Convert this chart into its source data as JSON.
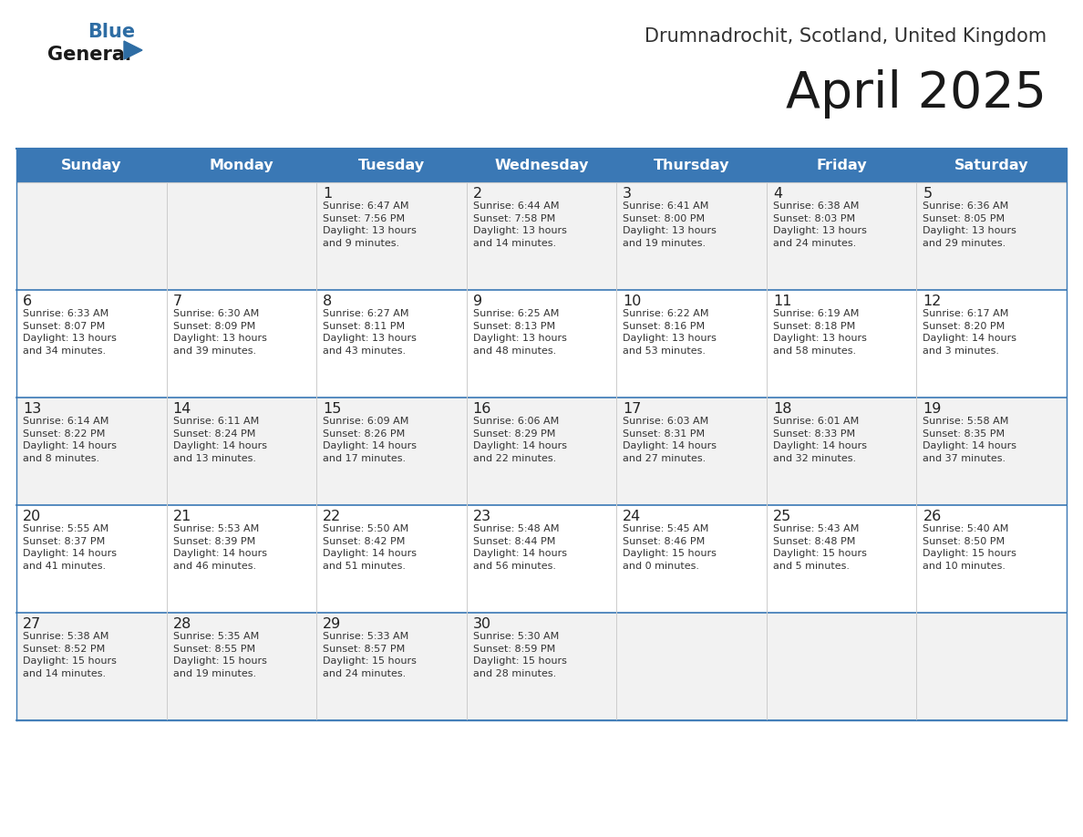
{
  "title": "April 2025",
  "subtitle": "Drumnadrochit, Scotland, United Kingdom",
  "header_bg": "#3A78B5",
  "header_text_color": "#FFFFFF",
  "row_bg_odd": "#F2F2F2",
  "row_bg_even": "#FFFFFF",
  "day_names": [
    "Sunday",
    "Monday",
    "Tuesday",
    "Wednesday",
    "Thursday",
    "Friday",
    "Saturday"
  ],
  "text_color_dark": "#333333",
  "line_color": "#3A78B5",
  "calendar_data": [
    [
      {
        "day": "",
        "info": ""
      },
      {
        "day": "",
        "info": ""
      },
      {
        "day": "1",
        "info": "Sunrise: 6:47 AM\nSunset: 7:56 PM\nDaylight: 13 hours\nand 9 minutes."
      },
      {
        "day": "2",
        "info": "Sunrise: 6:44 AM\nSunset: 7:58 PM\nDaylight: 13 hours\nand 14 minutes."
      },
      {
        "day": "3",
        "info": "Sunrise: 6:41 AM\nSunset: 8:00 PM\nDaylight: 13 hours\nand 19 minutes."
      },
      {
        "day": "4",
        "info": "Sunrise: 6:38 AM\nSunset: 8:03 PM\nDaylight: 13 hours\nand 24 minutes."
      },
      {
        "day": "5",
        "info": "Sunrise: 6:36 AM\nSunset: 8:05 PM\nDaylight: 13 hours\nand 29 minutes."
      }
    ],
    [
      {
        "day": "6",
        "info": "Sunrise: 6:33 AM\nSunset: 8:07 PM\nDaylight: 13 hours\nand 34 minutes."
      },
      {
        "day": "7",
        "info": "Sunrise: 6:30 AM\nSunset: 8:09 PM\nDaylight: 13 hours\nand 39 minutes."
      },
      {
        "day": "8",
        "info": "Sunrise: 6:27 AM\nSunset: 8:11 PM\nDaylight: 13 hours\nand 43 minutes."
      },
      {
        "day": "9",
        "info": "Sunrise: 6:25 AM\nSunset: 8:13 PM\nDaylight: 13 hours\nand 48 minutes."
      },
      {
        "day": "10",
        "info": "Sunrise: 6:22 AM\nSunset: 8:16 PM\nDaylight: 13 hours\nand 53 minutes."
      },
      {
        "day": "11",
        "info": "Sunrise: 6:19 AM\nSunset: 8:18 PM\nDaylight: 13 hours\nand 58 minutes."
      },
      {
        "day": "12",
        "info": "Sunrise: 6:17 AM\nSunset: 8:20 PM\nDaylight: 14 hours\nand 3 minutes."
      }
    ],
    [
      {
        "day": "13",
        "info": "Sunrise: 6:14 AM\nSunset: 8:22 PM\nDaylight: 14 hours\nand 8 minutes."
      },
      {
        "day": "14",
        "info": "Sunrise: 6:11 AM\nSunset: 8:24 PM\nDaylight: 14 hours\nand 13 minutes."
      },
      {
        "day": "15",
        "info": "Sunrise: 6:09 AM\nSunset: 8:26 PM\nDaylight: 14 hours\nand 17 minutes."
      },
      {
        "day": "16",
        "info": "Sunrise: 6:06 AM\nSunset: 8:29 PM\nDaylight: 14 hours\nand 22 minutes."
      },
      {
        "day": "17",
        "info": "Sunrise: 6:03 AM\nSunset: 8:31 PM\nDaylight: 14 hours\nand 27 minutes."
      },
      {
        "day": "18",
        "info": "Sunrise: 6:01 AM\nSunset: 8:33 PM\nDaylight: 14 hours\nand 32 minutes."
      },
      {
        "day": "19",
        "info": "Sunrise: 5:58 AM\nSunset: 8:35 PM\nDaylight: 14 hours\nand 37 minutes."
      }
    ],
    [
      {
        "day": "20",
        "info": "Sunrise: 5:55 AM\nSunset: 8:37 PM\nDaylight: 14 hours\nand 41 minutes."
      },
      {
        "day": "21",
        "info": "Sunrise: 5:53 AM\nSunset: 8:39 PM\nDaylight: 14 hours\nand 46 minutes."
      },
      {
        "day": "22",
        "info": "Sunrise: 5:50 AM\nSunset: 8:42 PM\nDaylight: 14 hours\nand 51 minutes."
      },
      {
        "day": "23",
        "info": "Sunrise: 5:48 AM\nSunset: 8:44 PM\nDaylight: 14 hours\nand 56 minutes."
      },
      {
        "day": "24",
        "info": "Sunrise: 5:45 AM\nSunset: 8:46 PM\nDaylight: 15 hours\nand 0 minutes."
      },
      {
        "day": "25",
        "info": "Sunrise: 5:43 AM\nSunset: 8:48 PM\nDaylight: 15 hours\nand 5 minutes."
      },
      {
        "day": "26",
        "info": "Sunrise: 5:40 AM\nSunset: 8:50 PM\nDaylight: 15 hours\nand 10 minutes."
      }
    ],
    [
      {
        "day": "27",
        "info": "Sunrise: 5:38 AM\nSunset: 8:52 PM\nDaylight: 15 hours\nand 14 minutes."
      },
      {
        "day": "28",
        "info": "Sunrise: 5:35 AM\nSunset: 8:55 PM\nDaylight: 15 hours\nand 19 minutes."
      },
      {
        "day": "29",
        "info": "Sunrise: 5:33 AM\nSunset: 8:57 PM\nDaylight: 15 hours\nand 24 minutes."
      },
      {
        "day": "30",
        "info": "Sunrise: 5:30 AM\nSunset: 8:59 PM\nDaylight: 15 hours\nand 28 minutes."
      },
      {
        "day": "",
        "info": ""
      },
      {
        "day": "",
        "info": ""
      },
      {
        "day": "",
        "info": ""
      }
    ]
  ]
}
